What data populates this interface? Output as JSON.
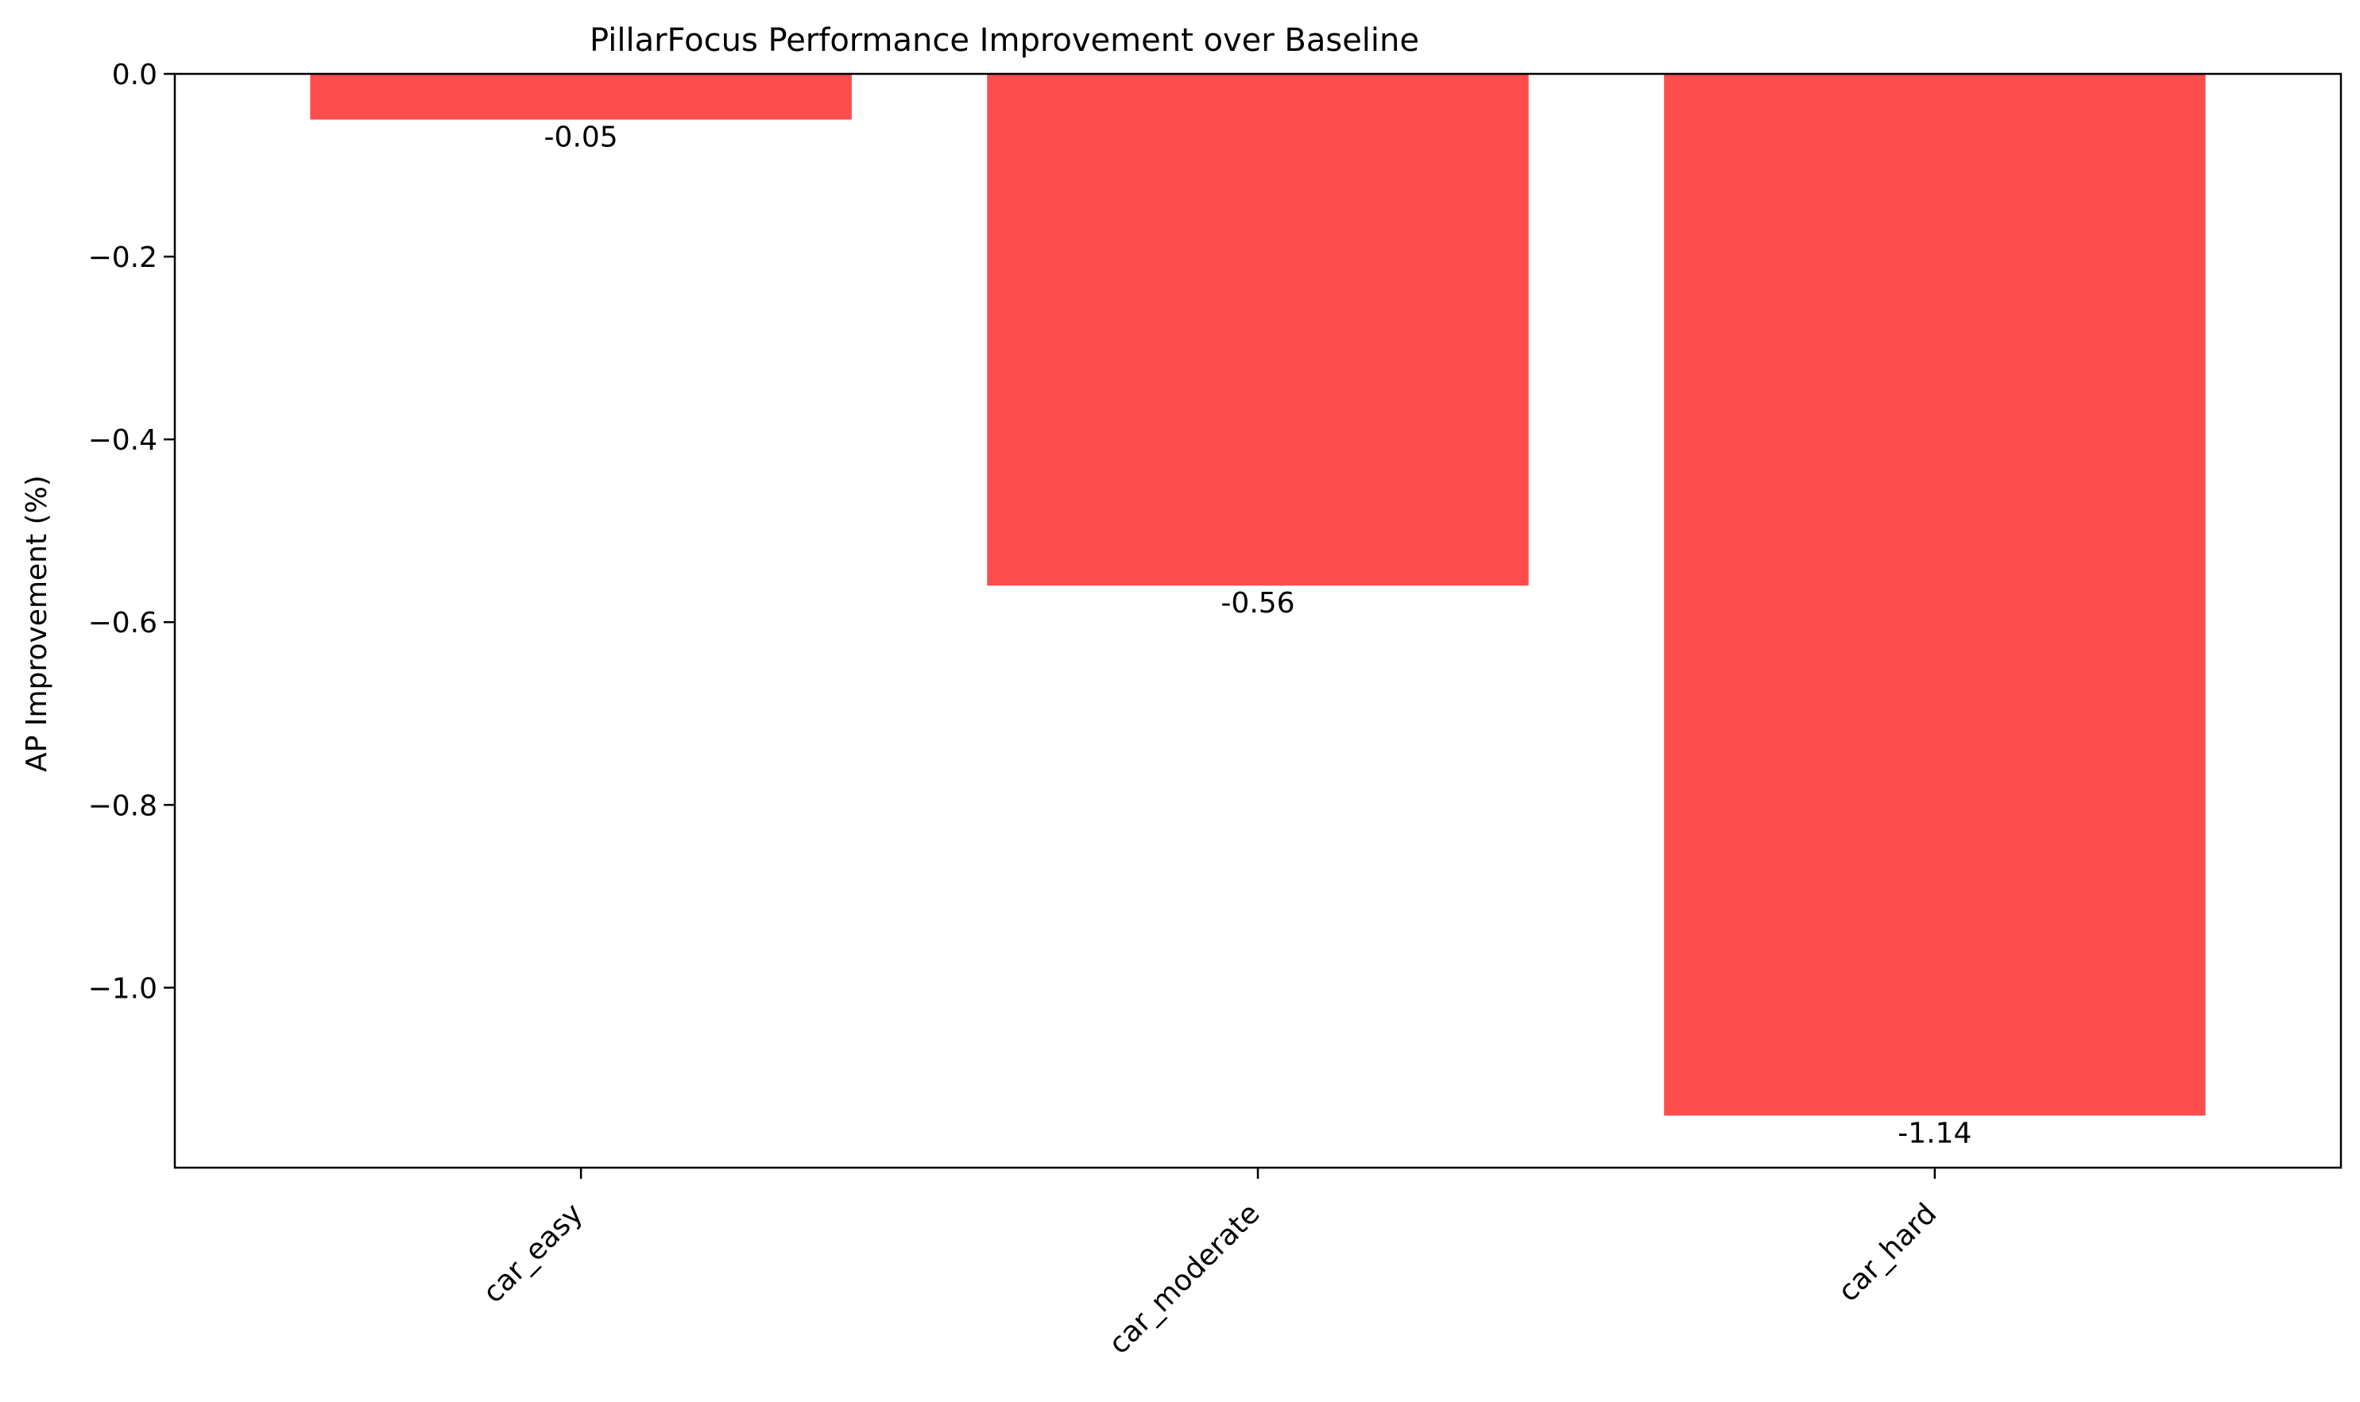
{
  "chart_data": {
    "type": "bar",
    "title": "PillarFocus Performance Improvement over Baseline",
    "xlabel": "",
    "ylabel": "AP Improvement (%)",
    "categories": [
      "car_easy",
      "car_moderate",
      "car_hard"
    ],
    "values": [
      -0.05,
      -0.56,
      -1.14
    ],
    "value_labels": [
      "-0.05",
      "-0.56",
      "-1.14"
    ],
    "ylim": [
      -1.197,
      0.0
    ],
    "yticks": [
      0.0,
      -0.2,
      -0.4,
      -0.6,
      -0.8,
      -1.0
    ],
    "ytick_labels": [
      "0.0",
      "−0.2",
      "−0.4",
      "−0.6",
      "−0.8",
      "−1.0"
    ],
    "bar_color": "#ff4d4d",
    "grid": false,
    "legend": "none"
  }
}
